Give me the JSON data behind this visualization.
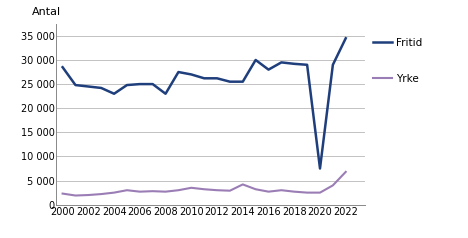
{
  "years": [
    2000,
    2001,
    2002,
    2003,
    2004,
    2005,
    2006,
    2007,
    2008,
    2009,
    2010,
    2011,
    2012,
    2013,
    2014,
    2015,
    2016,
    2017,
    2018,
    2019,
    2020,
    2021,
    2022
  ],
  "fritid": [
    28500,
    24800,
    24500,
    24200,
    23000,
    24800,
    25000,
    25000,
    23000,
    27500,
    27000,
    26200,
    26200,
    25500,
    25500,
    30000,
    28000,
    29500,
    29200,
    29000,
    7500,
    29000,
    34500
  ],
  "yrke": [
    2300,
    1900,
    2000,
    2200,
    2500,
    3000,
    2700,
    2800,
    2700,
    3000,
    3500,
    3200,
    3000,
    2900,
    4200,
    3200,
    2700,
    3000,
    2700,
    2500,
    2500,
    4000,
    6800
  ],
  "fritid_color": "#1f3e7c",
  "yrke_color": "#9b7db5",
  "ylabel": "Antal",
  "ylim": [
    0,
    37500
  ],
  "yticks": [
    0,
    5000,
    10000,
    15000,
    20000,
    25000,
    30000,
    35000
  ],
  "xticks": [
    2000,
    2002,
    2004,
    2006,
    2008,
    2010,
    2012,
    2014,
    2016,
    2018,
    2020,
    2022
  ],
  "legend_fritid": "Fritid",
  "legend_yrke": "Yrke",
  "background_color": "#ffffff",
  "grid_color": "#aaaaaa"
}
